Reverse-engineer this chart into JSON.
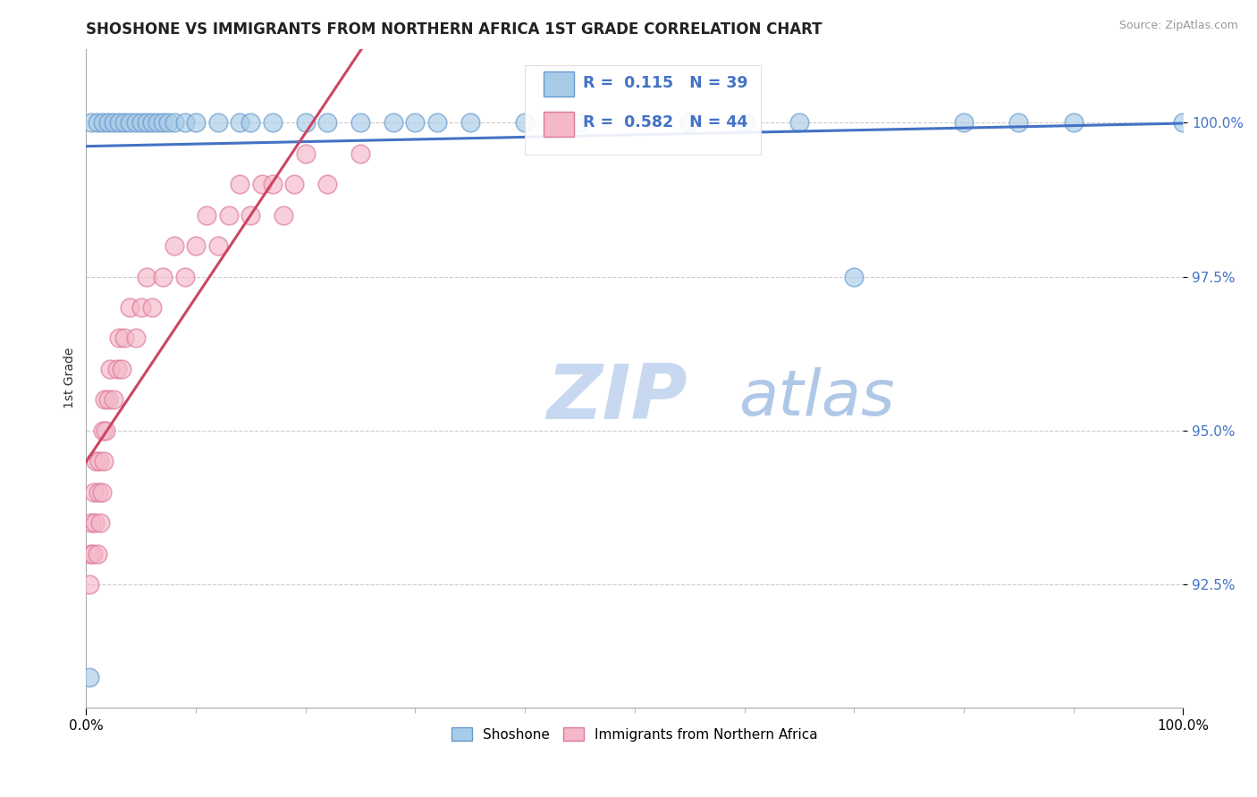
{
  "title": "SHOSHONE VS IMMIGRANTS FROM NORTHERN AFRICA 1ST GRADE CORRELATION CHART",
  "source_text": "Source: ZipAtlas.com",
  "ylabel": "1st Grade",
  "xlim": [
    0.0,
    100.0
  ],
  "ylim": [
    90.5,
    101.2
  ],
  "yticks": [
    92.5,
    95.0,
    97.5,
    100.0
  ],
  "ytick_labels": [
    "92.5%",
    "95.0%",
    "97.5%",
    "100.0%"
  ],
  "xtick_labels": [
    "0.0%",
    "100.0%"
  ],
  "grid_color": "#cccccc",
  "background_color": "#ffffff",
  "shoshone_color": "#a8cce8",
  "immigrants_color": "#f4b8c8",
  "shoshone_edge_color": "#6699cc",
  "immigrants_edge_color": "#dd7799",
  "shoshone_line_color": "#4472c4",
  "immigrants_line_color": "#cc4466",
  "R_shoshone": 0.115,
  "N_shoshone": 39,
  "R_immigrants": 0.582,
  "N_immigrants": 44,
  "legend_label_shoshone": "Shoshone",
  "legend_label_immigrants": "Immigrants from Northern Africa",
  "watermark_zip_color": "#c8d8f0",
  "watermark_atlas_color": "#b0c8e8",
  "shoshone_x": [
    0.5,
    1.0,
    1.5,
    2.0,
    2.5,
    3.0,
    3.5,
    4.0,
    4.5,
    5.0,
    5.5,
    6.0,
    6.5,
    7.0,
    7.5,
    8.0,
    9.0,
    10.0,
    12.0,
    14.0,
    15.0,
    17.0,
    20.0,
    22.0,
    25.0,
    28.0,
    30.0,
    32.0,
    35.0,
    40.0,
    45.0,
    55.0,
    60.0,
    65.0,
    70.0,
    80.0,
    85.0,
    90.0,
    100.0
  ],
  "shoshone_y": [
    100.0,
    100.0,
    100.0,
    100.0,
    100.0,
    100.0,
    100.0,
    100.0,
    100.0,
    100.0,
    100.0,
    100.0,
    100.0,
    100.0,
    100.0,
    100.0,
    100.0,
    100.0,
    100.0,
    100.0,
    100.0,
    100.0,
    100.0,
    100.0,
    100.0,
    100.0,
    100.0,
    100.0,
    100.0,
    100.0,
    100.0,
    100.0,
    100.0,
    100.0,
    97.5,
    100.0,
    100.0,
    100.0,
    100.0
  ],
  "shoshone_outlier_x": [
    0.3
  ],
  "shoshone_outlier_y": [
    91.0
  ],
  "immigrants_x": [
    0.3,
    0.4,
    0.5,
    0.6,
    0.7,
    0.8,
    0.9,
    1.0,
    1.1,
    1.2,
    1.3,
    1.4,
    1.5,
    1.6,
    1.7,
    1.8,
    2.0,
    2.2,
    2.5,
    2.8,
    3.0,
    3.2,
    3.5,
    4.0,
    4.5,
    5.0,
    5.5,
    6.0,
    7.0,
    8.0,
    9.0,
    10.0,
    11.0,
    12.0,
    13.0,
    14.0,
    15.0,
    16.0,
    17.0,
    18.0,
    19.0,
    20.0,
    22.0,
    25.0
  ],
  "immigrants_y": [
    92.5,
    93.0,
    93.5,
    93.0,
    94.0,
    93.5,
    94.5,
    93.0,
    94.0,
    94.5,
    93.5,
    94.0,
    95.0,
    94.5,
    95.5,
    95.0,
    95.5,
    96.0,
    95.5,
    96.0,
    96.5,
    96.0,
    96.5,
    97.0,
    96.5,
    97.0,
    97.5,
    97.0,
    97.5,
    98.0,
    97.5,
    98.0,
    98.5,
    98.0,
    98.5,
    99.0,
    98.5,
    99.0,
    99.0,
    98.5,
    99.0,
    99.5,
    99.0,
    99.5
  ]
}
